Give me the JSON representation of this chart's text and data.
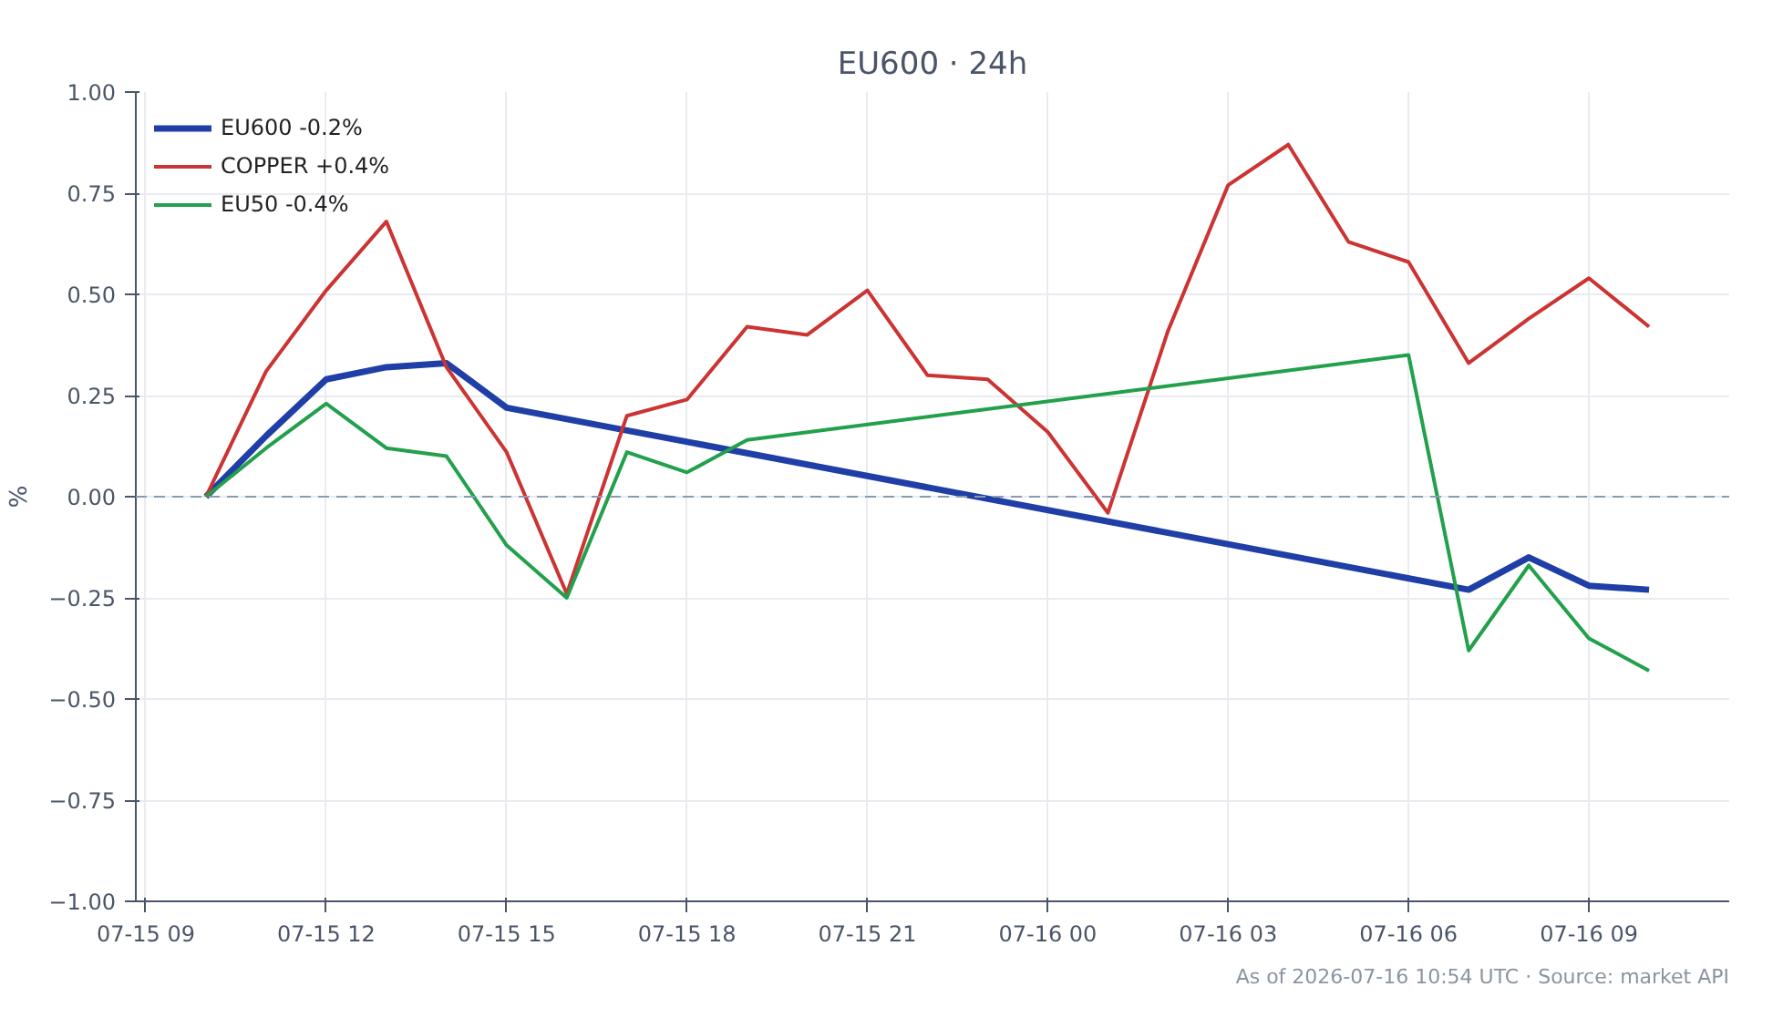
{
  "chart_data": {
    "type": "line",
    "title": "EU600 · 24h",
    "ylabel": "%",
    "annotations": [
      "As of 2026-07-16 10:54 UTC · Source: market API"
    ],
    "xlim": [
      "2026-07-15T08:50",
      "2026-07-16T11:20"
    ],
    "xticks": [
      {
        "value": "2026-07-15T09:00",
        "label": "07-15 09"
      },
      {
        "value": "2026-07-15T12:00",
        "label": "07-15 12"
      },
      {
        "value": "2026-07-15T15:00",
        "label": "07-15 15"
      },
      {
        "value": "2026-07-15T18:00",
        "label": "07-15 18"
      },
      {
        "value": "2026-07-15T21:00",
        "label": "07-15 21"
      },
      {
        "value": "2026-07-16T00:00",
        "label": "07-16 00"
      },
      {
        "value": "2026-07-16T03:00",
        "label": "07-16 03"
      },
      {
        "value": "2026-07-16T06:00",
        "label": "07-16 06"
      },
      {
        "value": "2026-07-16T09:00",
        "label": "07-16 09"
      }
    ],
    "ylim": [
      -1.0,
      1.0
    ],
    "yticks": [
      {
        "value": -1,
        "label": "−1.00"
      },
      {
        "value": -0.75,
        "label": "−0.75"
      },
      {
        "value": -0.5,
        "label": "−0.50"
      },
      {
        "value": -0.25,
        "label": "−0.25"
      },
      {
        "value": 0,
        "label": "0.00"
      },
      {
        "value": 0.25,
        "label": "0.25"
      },
      {
        "value": 0.5,
        "label": "0.50"
      },
      {
        "value": 0.75,
        "label": "0.75"
      },
      {
        "value": 1,
        "label": "1.00"
      }
    ],
    "grid": true,
    "legend": "top left",
    "marker": "none",
    "line_style": "solid",
    "ref_lines": [
      {
        "axis": "y",
        "value": 0,
        "color": "#8a9bb0",
        "line_style": "dashed"
      }
    ],
    "series": [
      {
        "name": "EU600 -0.2%",
        "color": "#1f3ea6",
        "x": [
          "2026-07-15T10:00",
          "2026-07-15T11:00",
          "2026-07-15T12:00",
          "2026-07-15T13:00",
          "2026-07-15T14:00",
          "2026-07-15T15:00",
          "2026-07-16T07:00",
          "2026-07-16T08:00",
          "2026-07-16T09:00",
          "2026-07-16T10:00"
        ],
        "values": [
          0,
          0.15,
          0.29,
          0.32,
          0.33,
          0.22,
          -0.23,
          -0.15,
          -0.22,
          -0.23
        ]
      },
      {
        "name": "COPPER +0.4%",
        "color": "#cc3333",
        "x": [
          "2026-07-15T10:00",
          "2026-07-15T11:00",
          "2026-07-15T12:00",
          "2026-07-15T13:00",
          "2026-07-15T14:00",
          "2026-07-15T15:00",
          "2026-07-15T16:00",
          "2026-07-15T17:00",
          "2026-07-15T18:00",
          "2026-07-15T19:00",
          "2026-07-15T20:00",
          "2026-07-15T21:00",
          "2026-07-15T22:00",
          "2026-07-15T23:00",
          "2026-07-16T00:00",
          "2026-07-16T01:00",
          "2026-07-16T02:00",
          "2026-07-16T03:00",
          "2026-07-16T04:00",
          "2026-07-16T05:00",
          "2026-07-16T06:00",
          "2026-07-16T07:00",
          "2026-07-16T08:00",
          "2026-07-16T09:00",
          "2026-07-16T10:00"
        ],
        "values": [
          0,
          0.31,
          0.51,
          0.68,
          0.32,
          0.11,
          -0.24,
          0.2,
          0.24,
          0.42,
          0.4,
          0.51,
          0.3,
          0.29,
          0.16,
          -0.04,
          0.41,
          0.77,
          0.87,
          0.63,
          0.58,
          0.33,
          0.44,
          0.54,
          0.42
        ]
      },
      {
        "name": "EU50 -0.4%",
        "color": "#22a04b",
        "x": [
          "2026-07-15T10:00",
          "2026-07-15T11:00",
          "2026-07-15T12:00",
          "2026-07-15T13:00",
          "2026-07-15T14:00",
          "2026-07-15T15:00",
          "2026-07-15T16:00",
          "2026-07-15T17:00",
          "2026-07-15T18:00",
          "2026-07-15T19:00",
          "2026-07-16T06:00",
          "2026-07-16T07:00",
          "2026-07-16T08:00",
          "2026-07-16T09:00",
          "2026-07-16T10:00"
        ],
        "values": [
          0,
          0.12,
          0.23,
          0.12,
          0.1,
          -0.12,
          -0.25,
          0.11,
          0.06,
          0.14,
          0.35,
          -0.38,
          -0.17,
          -0.35,
          -0.43
        ]
      }
    ]
  }
}
